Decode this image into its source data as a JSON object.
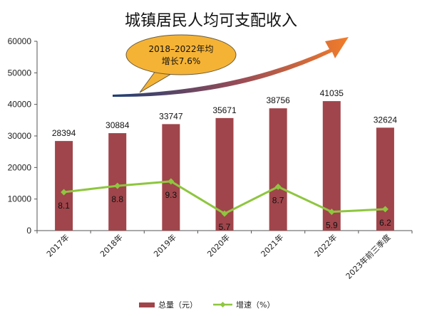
{
  "chart_data": {
    "type": "bar",
    "title": "城镇居民人均可支配收入",
    "categories": [
      "2017年",
      "2018年",
      "2019年",
      "2020年",
      "2021年",
      "2022年",
      "2023年前三季度"
    ],
    "series": [
      {
        "name": "总量（元）",
        "type": "bar",
        "values": [
          28394,
          30884,
          33747,
          35671,
          38756,
          41035,
          32624
        ],
        "color": "#a0454b"
      },
      {
        "name": "增速（%）",
        "type": "line",
        "values": [
          8.1,
          8.8,
          9.3,
          5.7,
          8.7,
          5.9,
          6.2
        ],
        "color": "#8ec63f"
      }
    ],
    "ylim": [
      0,
      60000
    ],
    "yticks": [
      "0",
      "10000",
      "20000",
      "30000",
      "40000",
      "50000",
      "60000"
    ],
    "grid": false,
    "legend_position": "bottom",
    "annotation": {
      "line1": "2018–2022年均",
      "line2": "增长7.6%",
      "fill": "#f5b335"
    }
  }
}
